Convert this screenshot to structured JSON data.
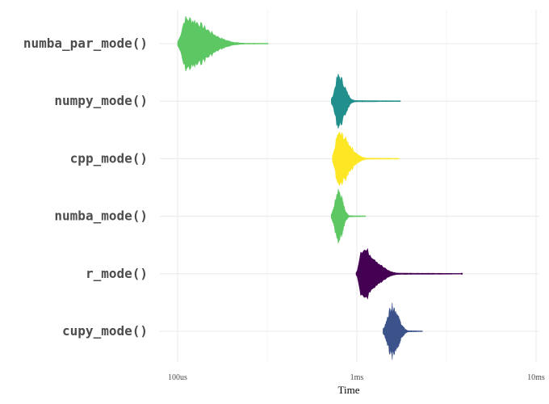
{
  "chart_data": {
    "type": "violin",
    "title": "",
    "xlabel": "Time",
    "ylabel": "",
    "x_scale": "log10",
    "x_unit": "seconds",
    "xlim": [
      8e-05,
      0.011
    ],
    "x_ticks": [
      {
        "value": 0.0001,
        "label": "100us"
      },
      {
        "value": 0.001,
        "label": "1ms"
      },
      {
        "value": 0.01,
        "label": "10ms"
      }
    ],
    "x_minor_ticks": [
      0.0003162,
      0.003162
    ],
    "grid": true,
    "legend": "none",
    "categories": [
      "numba_par_mode()",
      "numpy_mode()",
      "cpp_mode()",
      "numba_mode()",
      "r_mode()",
      "cupy_mode()"
    ],
    "series": [
      {
        "name": "numba_par_mode()",
        "color": "#5dc863",
        "min": 0.0001,
        "p5": 0.000104,
        "median": 0.000111,
        "p95": 0.00016,
        "max": 0.00032
      },
      {
        "name": "numpy_mode()",
        "color": "#21908c",
        "min": 0.00072,
        "p5": 0.000745,
        "median": 0.00079,
        "p95": 0.00088,
        "max": 0.00175
      },
      {
        "name": "cpp_mode()",
        "color": "#fde725",
        "min": 0.00073,
        "p5": 0.00075,
        "median": 0.00079,
        "p95": 0.00095,
        "max": 0.00172
      },
      {
        "name": "numba_mode()",
        "color": "#5dc863",
        "min": 0.00072,
        "p5": 0.000745,
        "median": 0.00079,
        "p95": 0.00085,
        "max": 0.00112
      },
      {
        "name": "r_mode()",
        "color": "#440154",
        "min": 0.00099,
        "p5": 0.00102,
        "median": 0.00106,
        "p95": 0.00135,
        "max": 0.0038
      },
      {
        "name": "cupy_mode()",
        "color": "#3b528b",
        "min": 0.0014,
        "p5": 0.00146,
        "median": 0.00157,
        "p95": 0.00175,
        "max": 0.00232
      }
    ]
  }
}
